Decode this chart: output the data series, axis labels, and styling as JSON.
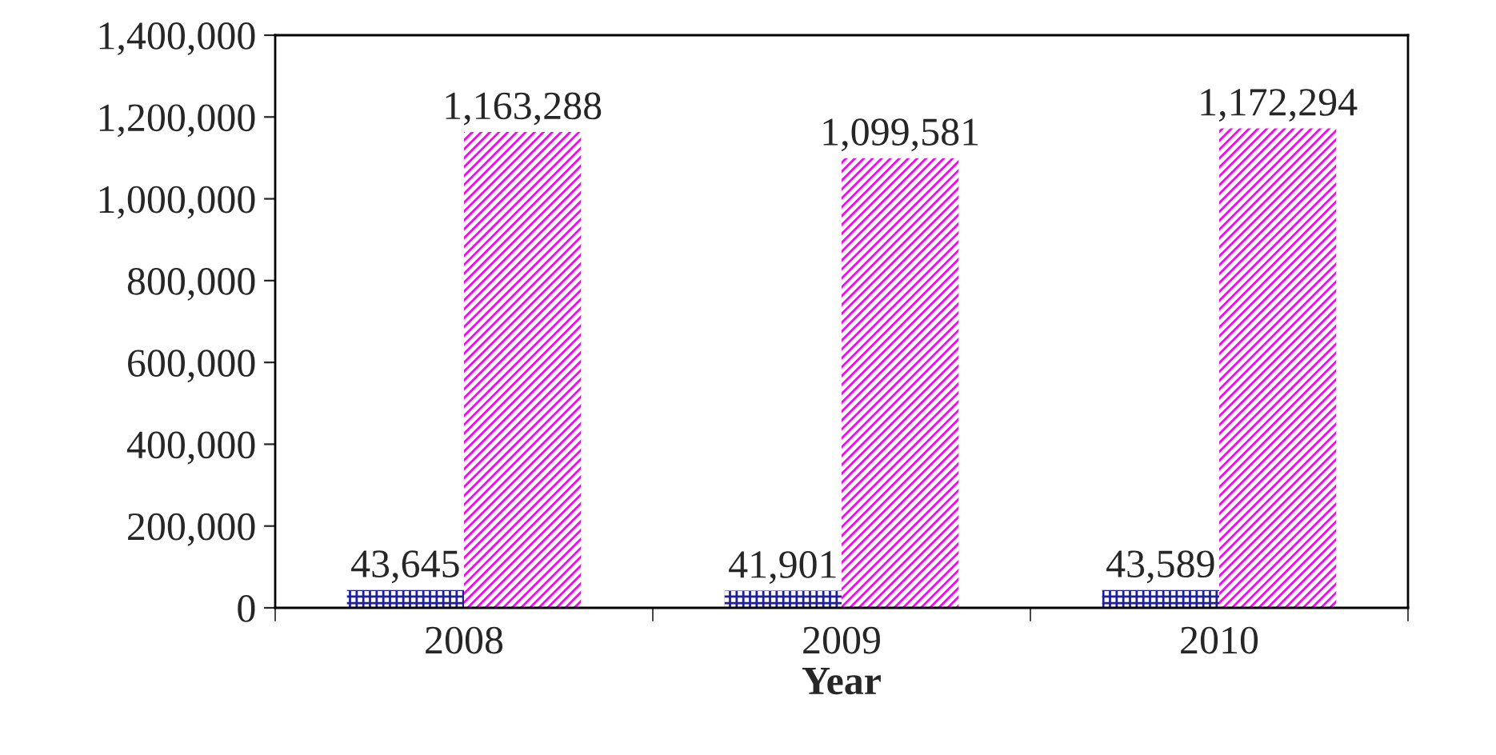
{
  "chart_data": {
    "type": "bar",
    "xlabel": "Year",
    "categories": [
      "2008",
      "2009",
      "2010"
    ],
    "series": [
      {
        "color": "#1f1f9a",
        "values": [
          43645,
          41901,
          43589
        ],
        "value_labels": [
          "43,645",
          "41,901",
          "43,589"
        ]
      },
      {
        "color": "#ff00ff",
        "values": [
          1163288,
          1099581,
          1172294
        ],
        "value_labels": [
          "1,163,288",
          "1,099,581",
          "1,172,294"
        ]
      }
    ],
    "legend": false,
    "grid": false,
    "ylim": [
      0,
      1400000
    ],
    "yticks": [
      0,
      {
        "value": 200000,
        "label": "200,000"
      },
      {
        "value": 400000,
        "label": "400,000"
      },
      {
        "value": 600000,
        "label": "600,000"
      },
      {
        "value": 800000,
        "label": "800,000"
      },
      {
        "value": 1000000,
        "label": "1,000,000"
      },
      {
        "value": 1200000,
        "label": "1,200,000"
      },
      {
        "value": 1400000,
        "label": "1,400,000"
      }
    ]
  }
}
